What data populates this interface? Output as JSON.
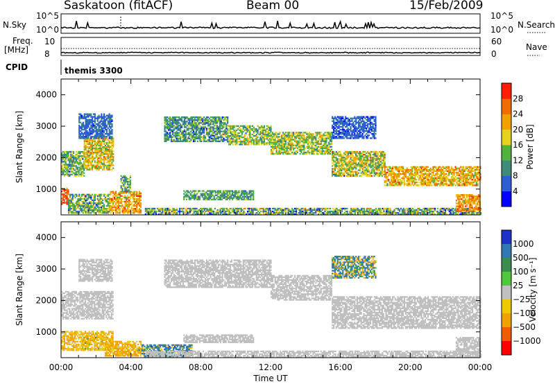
{
  "header": {
    "station": "Saskatoon (fitACF)",
    "beam": "Beam 00",
    "date": "15/Feb/2009"
  },
  "strip": {
    "nsky_label": "N.Sky",
    "nsky_ticks": [
      "10^5",
      "10^0"
    ],
    "nsearch_label": "N.Search",
    "freq_label_1": "Freq.",
    "freq_label_2": "[MHz]",
    "freq_ticks": [
      "10",
      "8"
    ],
    "nave_label": "Nave",
    "nave_ticks": [
      "60",
      "0"
    ],
    "cpid_label": "CPID",
    "cpid_value": "themis 3300"
  },
  "colors": {
    "power": [
      "#0000ff",
      "#2b5fd2",
      "#3c8c78",
      "#50b43c",
      "#e6d21e",
      "#f0a000",
      "#f06e00",
      "#ff1e00"
    ],
    "velocity": [
      "#1e32c8",
      "#3278b4",
      "#3c8c50",
      "#50c83c",
      "#c0c0c0",
      "#f0c800",
      "#f0a000",
      "#f05a00",
      "#ff0000"
    ],
    "ground_scatter": "#bfbfbf"
  },
  "chart_data": [
    {
      "type": "heatmap",
      "name": "power-panel",
      "ylabel": "Slant Range [km]",
      "ylim": [
        180,
        4500
      ],
      "xlim": [
        "00:00",
        "24:00"
      ],
      "y_ticks": [
        1000,
        2000,
        3000,
        4000
      ],
      "x_ticks": [
        "00:00",
        "04:00",
        "08:00",
        "12:00",
        "16:00",
        "20:00",
        "00:00"
      ],
      "colorbar_label": "Power [dB]",
      "colorbar_ticks": [
        "4",
        "8",
        "12",
        "16",
        "20",
        "24",
        "28"
      ],
      "scatter_regions": [
        {
          "t0": 0.0,
          "t1": 0.4,
          "r0": 500,
          "r1": 1000,
          "mean": 27,
          "sd": 3
        },
        {
          "t0": 0.4,
          "t1": 2.8,
          "r0": 220,
          "r1": 850,
          "mean": 14,
          "sd": 6
        },
        {
          "t0": 2.8,
          "t1": 4.6,
          "r0": 220,
          "r1": 900,
          "mean": 22,
          "sd": 5
        },
        {
          "t0": 3.4,
          "t1": 4.0,
          "r0": 900,
          "r1": 1400,
          "mean": 12,
          "sd": 4
        },
        {
          "t0": 0.0,
          "t1": 1.3,
          "r0": 1400,
          "r1": 2200,
          "mean": 14,
          "sd": 5
        },
        {
          "t0": 1.3,
          "t1": 3.0,
          "r0": 1600,
          "r1": 2600,
          "mean": 19,
          "sd": 5
        },
        {
          "t0": 1.0,
          "t1": 2.9,
          "r0": 2600,
          "r1": 3400,
          "mean": 7,
          "sd": 2
        },
        {
          "t0": 5.9,
          "t1": 9.5,
          "r0": 2500,
          "r1": 3300,
          "mean": 11,
          "sd": 5
        },
        {
          "t0": 9.5,
          "t1": 12.0,
          "r0": 2400,
          "r1": 3000,
          "mean": 15,
          "sd": 5
        },
        {
          "t0": 12.0,
          "t1": 15.5,
          "r0": 2100,
          "r1": 2800,
          "mean": 16,
          "sd": 5
        },
        {
          "t0": 15.5,
          "t1": 18.5,
          "r0": 1400,
          "r1": 2200,
          "mean": 17,
          "sd": 6
        },
        {
          "t0": 18.5,
          "t1": 24.0,
          "r0": 1100,
          "r1": 1700,
          "mean": 21,
          "sd": 5
        },
        {
          "t0": 15.5,
          "t1": 18.0,
          "r0": 2600,
          "r1": 3300,
          "mean": 6,
          "sd": 2
        },
        {
          "t0": 7.0,
          "t1": 11.0,
          "r0": 650,
          "r1": 950,
          "mean": 12,
          "sd": 4
        },
        {
          "t0": 4.8,
          "t1": 24.0,
          "r0": 180,
          "r1": 400,
          "mean": 13,
          "sd": 7
        },
        {
          "t0": 22.6,
          "t1": 24.0,
          "r0": 300,
          "r1": 800,
          "mean": 23,
          "sd": 4
        }
      ]
    },
    {
      "type": "heatmap",
      "name": "velocity-panel",
      "ylabel": "Slant Range [km]",
      "xlabel": "Time UT",
      "ylim": [
        180,
        4500
      ],
      "xlim": [
        "00:00",
        "24:00"
      ],
      "y_ticks": [
        1000,
        2000,
        3000,
        4000
      ],
      "x_ticks": [
        "00:00",
        "04:00",
        "08:00",
        "12:00",
        "16:00",
        "20:00",
        "00:00"
      ],
      "colorbar_label": "Velocity [m s⁻¹]",
      "colorbar_ticks": [
        "1000",
        "500",
        "100",
        "25",
        "−25",
        "−100",
        "−500",
        "−1000"
      ],
      "scatter_regions": [
        {
          "t0": 0.0,
          "t1": 3.0,
          "r0": 400,
          "r1": 1000,
          "mean": -80,
          "sd": 60
        },
        {
          "t0": 2.5,
          "t1": 4.6,
          "r0": 220,
          "r1": 700,
          "mean": -120,
          "sd": 70
        },
        {
          "t0": 4.6,
          "t1": 7.5,
          "r0": 200,
          "r1": 600,
          "mean": 150,
          "sd": 200
        },
        {
          "t0": 0.0,
          "t1": 3.0,
          "r0": 1400,
          "r1": 2300,
          "mean": 0,
          "sd": 20,
          "ground": true
        },
        {
          "t0": 1.0,
          "t1": 2.9,
          "r0": 2600,
          "r1": 3300,
          "mean": 0,
          "sd": 20,
          "ground": true
        },
        {
          "t0": 5.9,
          "t1": 12.0,
          "r0": 2400,
          "r1": 3300,
          "mean": 0,
          "sd": 30,
          "ground": true
        },
        {
          "t0": 12.0,
          "t1": 15.5,
          "r0": 2000,
          "r1": 2800,
          "mean": 0,
          "sd": 30,
          "ground": true
        },
        {
          "t0": 15.5,
          "t1": 24.0,
          "r0": 1100,
          "r1": 2100,
          "mean": 0,
          "sd": 30,
          "ground": true
        },
        {
          "t0": 15.5,
          "t1": 18.0,
          "r0": 2700,
          "r1": 3400,
          "mean": 60,
          "sd": 200
        },
        {
          "t0": 7.0,
          "t1": 11.0,
          "r0": 650,
          "r1": 900,
          "mean": 0,
          "sd": 20,
          "ground": true
        },
        {
          "t0": 4.8,
          "t1": 24.0,
          "r0": 180,
          "r1": 400,
          "mean": 0,
          "sd": 25,
          "ground": true
        },
        {
          "t0": 22.6,
          "t1": 24.0,
          "r0": 300,
          "r1": 800,
          "mean": 0,
          "sd": 20,
          "ground": true
        }
      ]
    }
  ]
}
